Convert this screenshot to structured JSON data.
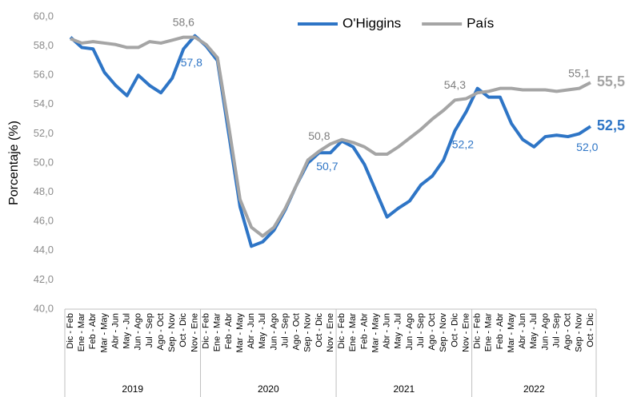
{
  "chart_data": {
    "type": "line",
    "y_label": "Porcentaje (%)",
    "categories": [
      "Dic - Feb",
      "Ene - Mar",
      "Feb - Abr",
      "Mar - May",
      "Abr - Jun",
      "May - Jul",
      "Jun - Ago",
      "Jul - Sep",
      "Ago - Oct",
      "Sep - Nov",
      "Oct - Dic",
      "Nov - Ene",
      "Dic - Feb",
      "Ene - Mar",
      "Feb - Abr",
      "Mar - May",
      "Abr - Jun",
      "May - Jul",
      "Jun - Ago",
      "Jul - Sep",
      "Ago - Oct",
      "Sep - Nov",
      "Oct - Dic",
      "Nov - Ene",
      "Dic - Feb",
      "Ene - Mar",
      "Feb - Abr",
      "Mar - May",
      "Abr - Jun",
      "May - Jul",
      "Jun - Ago",
      "Jul - Sep",
      "Ago - Oct",
      "Sep - Nov",
      "Oct - Dic",
      "Nov - Ene",
      "Dic - Feb",
      "Ene - Mar",
      "Feb - Abr",
      "Mar - May",
      "Abr - Jun",
      "May - Jul",
      "Jun - Ago",
      "Jul - Sep",
      "Ago - Oct",
      "Sep - Nov",
      "Oct - Dic"
    ],
    "x_groups": [
      "2019",
      "2020",
      "2021",
      "2022"
    ],
    "series": [
      {
        "name": "O'Higgins",
        "color": "#2e75c6",
        "values": [
          58.6,
          57.9,
          57.8,
          56.2,
          55.3,
          54.6,
          56.0,
          55.3,
          54.8,
          55.8,
          57.8,
          58.7,
          58.0,
          57.0,
          52.0,
          47.0,
          44.3,
          44.6,
          45.4,
          46.8,
          48.5,
          50.0,
          50.7,
          50.7,
          51.5,
          51.1,
          49.9,
          48.1,
          46.3,
          46.9,
          47.4,
          48.5,
          49.1,
          50.2,
          52.2,
          53.5,
          55.1,
          54.5,
          54.5,
          52.7,
          51.6,
          51.1,
          51.8,
          51.9,
          51.8,
          52.0,
          52.5
        ],
        "value_labels": [
          null,
          null,
          null,
          null,
          null,
          null,
          null,
          null,
          null,
          null,
          "57,8",
          null,
          null,
          null,
          null,
          null,
          null,
          null,
          null,
          null,
          null,
          null,
          "50,7",
          null,
          null,
          null,
          null,
          null,
          null,
          null,
          null,
          null,
          null,
          null,
          "52,2",
          null,
          null,
          null,
          null,
          null,
          null,
          null,
          null,
          null,
          null,
          "52,0",
          "52,5"
        ]
      },
      {
        "name": "País",
        "color": "#a5a5a5",
        "values": [
          58.5,
          58.2,
          58.3,
          58.2,
          58.1,
          57.9,
          57.9,
          58.3,
          58.2,
          58.4,
          58.6,
          58.6,
          58.1,
          57.2,
          52.5,
          47.5,
          45.6,
          45.0,
          45.6,
          46.9,
          48.5,
          50.2,
          50.8,
          51.3,
          51.6,
          51.4,
          51.1,
          50.6,
          50.6,
          51.1,
          51.7,
          52.3,
          53.0,
          53.6,
          54.3,
          54.4,
          54.8,
          54.9,
          55.1,
          55.1,
          55.0,
          55.0,
          55.0,
          54.9,
          55.0,
          55.1,
          55.5
        ],
        "value_labels": [
          null,
          null,
          null,
          null,
          null,
          null,
          null,
          null,
          null,
          null,
          "58,6",
          null,
          null,
          null,
          null,
          null,
          null,
          null,
          null,
          null,
          null,
          null,
          "50,8",
          null,
          null,
          null,
          null,
          null,
          null,
          null,
          null,
          null,
          null,
          null,
          "54,3",
          null,
          null,
          null,
          null,
          null,
          null,
          null,
          null,
          null,
          null,
          "55,1",
          "55,5"
        ]
      }
    ],
    "ylim": [
      40,
      60
    ],
    "yticks": [
      {
        "value": 40,
        "label": "40,0"
      },
      {
        "value": 42,
        "label": "42,0"
      },
      {
        "value": 44,
        "label": "44,0"
      },
      {
        "value": 46,
        "label": "46,0"
      },
      {
        "value": 48,
        "label": "48,0"
      },
      {
        "value": 50,
        "label": "50,0"
      },
      {
        "value": 52,
        "label": "52,0"
      },
      {
        "value": 54,
        "label": "54,0"
      },
      {
        "value": 56,
        "label": "56,0"
      },
      {
        "value": 58,
        "label": "58,0"
      },
      {
        "value": 60,
        "label": "60,0"
      }
    ],
    "grid": false,
    "legend": "top"
  }
}
